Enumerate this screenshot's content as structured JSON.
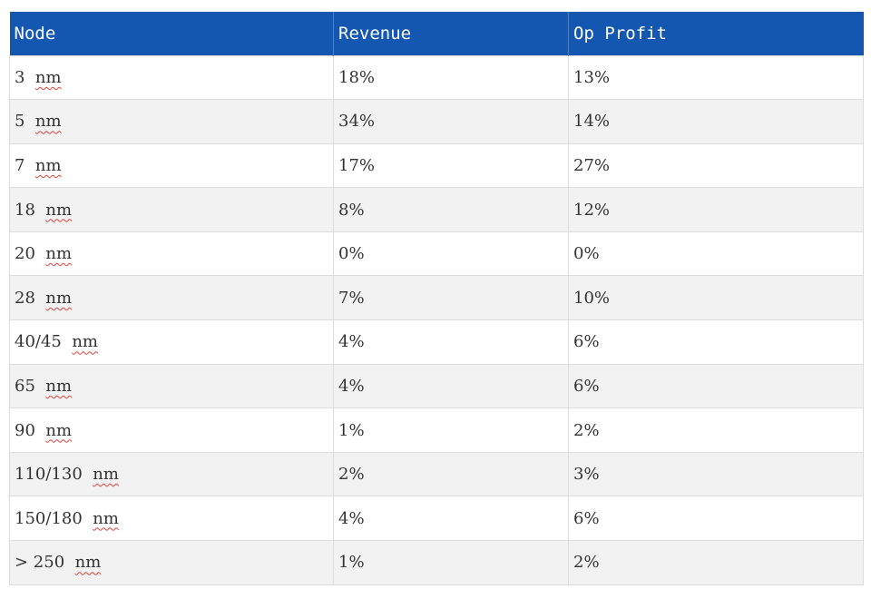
{
  "table": {
    "headers": [
      "Node",
      "Revenue",
      "Op Profit"
    ],
    "rows": [
      {
        "node": "3",
        "unit": "nm",
        "revenue": "18%",
        "op_profit": "13%"
      },
      {
        "node": "5",
        "unit": "nm",
        "revenue": "34%",
        "op_profit": "14%"
      },
      {
        "node": "7",
        "unit": "nm",
        "revenue": "17%",
        "op_profit": "27%"
      },
      {
        "node": "18",
        "unit": "nm",
        "revenue": "8%",
        "op_profit": "12%"
      },
      {
        "node": "20",
        "unit": "nm",
        "revenue": "0%",
        "op_profit": "0%"
      },
      {
        "node": "28",
        "unit": "nm",
        "revenue": "7%",
        "op_profit": "10%"
      },
      {
        "node": "40/45",
        "unit": "nm",
        "revenue": "4%",
        "op_profit": "6%"
      },
      {
        "node": "65",
        "unit": "nm",
        "revenue": "4%",
        "op_profit": "6%"
      },
      {
        "node": "90",
        "unit": "nm",
        "revenue": "1%",
        "op_profit": "2%"
      },
      {
        "node": "110/130",
        "unit": "nm",
        "revenue": "2%",
        "op_profit": "3%"
      },
      {
        "node": "150/180",
        "unit": "nm",
        "revenue": "4%",
        "op_profit": "6%"
      },
      {
        "node": "> 250",
        "unit": "nm",
        "revenue": "1%",
        "op_profit": "2%"
      }
    ]
  },
  "colors": {
    "header_bg": "#1357b1",
    "header_text": "#ffffff",
    "row_alt_bg": "#f2f2f2",
    "spellcheck_underline": "#e0413a"
  }
}
